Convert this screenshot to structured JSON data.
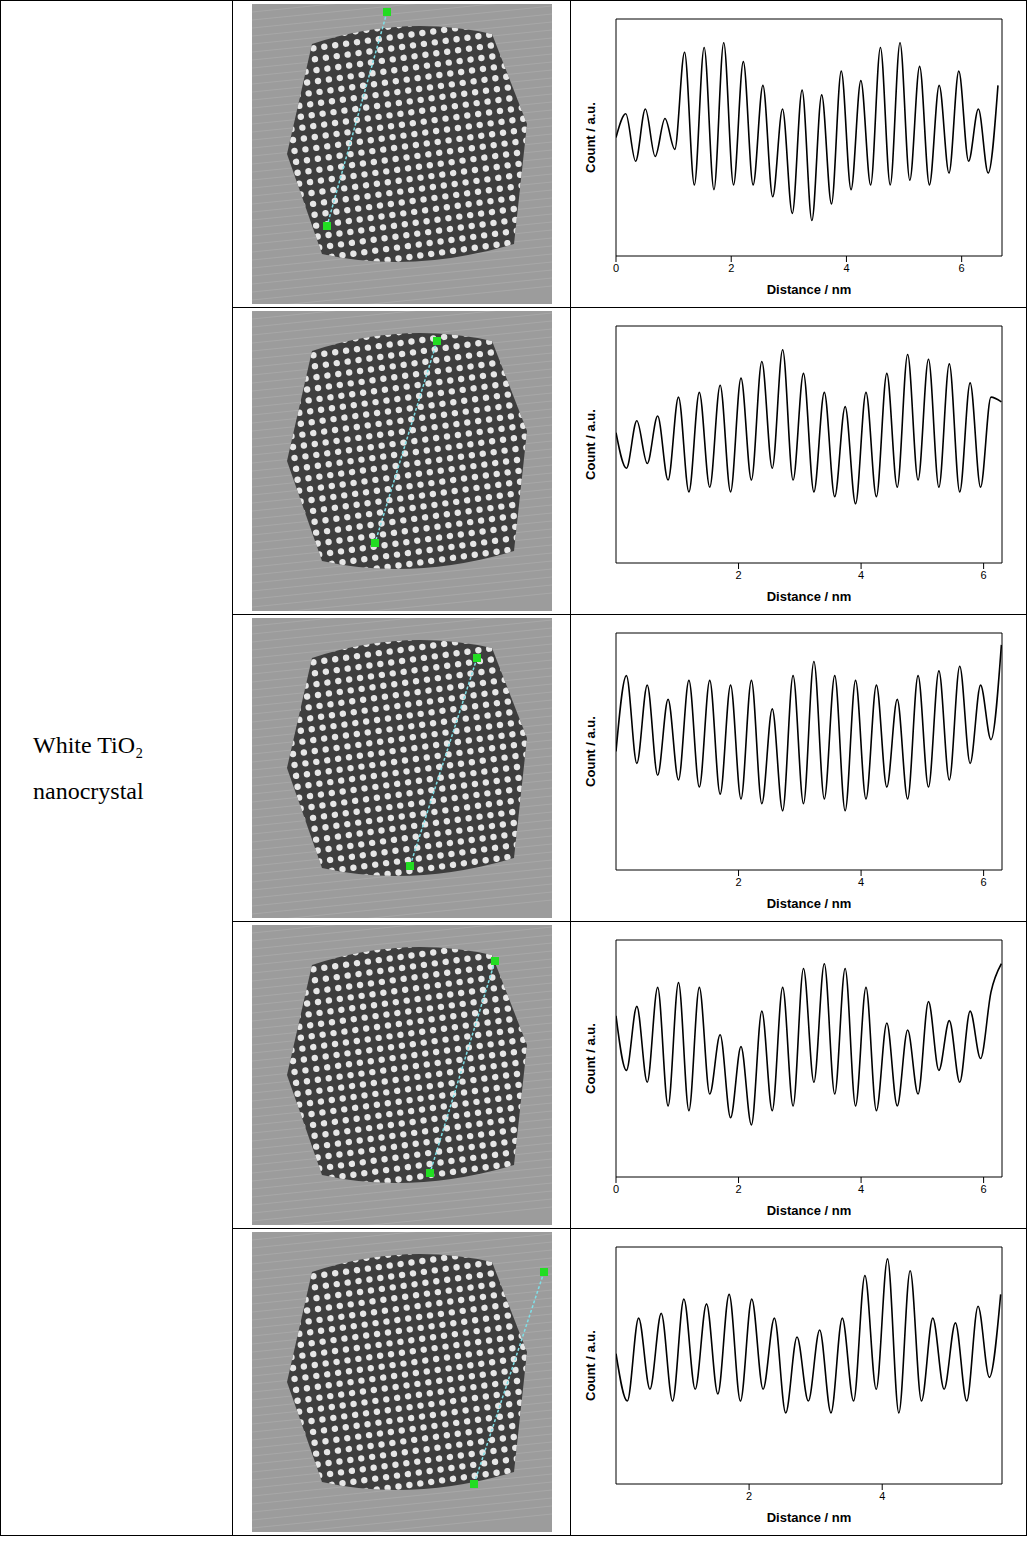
{
  "row_label": [
    "White TiO₂",
    "nanocrystal"
  ],
  "chart_data": [
    {
      "type": "line",
      "xlabel": "Distance / nm",
      "ylabel": "Count / a.u.",
      "color": "#000000",
      "tick_labels": "x",
      "xlim": [
        0,
        6.7
      ],
      "xticks": [
        0,
        2,
        4,
        6
      ],
      "ylim": [
        0,
        1
      ],
      "x": [
        0,
        0.17,
        0.34,
        0.51,
        0.68,
        0.85,
        1.02,
        1.19,
        1.36,
        1.53,
        1.7,
        1.87,
        2.04,
        2.21,
        2.38,
        2.55,
        2.72,
        2.89,
        3.06,
        3.23,
        3.4,
        3.57,
        3.74,
        3.91,
        4.08,
        4.25,
        4.42,
        4.59,
        4.76,
        4.93,
        5.1,
        5.27,
        5.44,
        5.61,
        5.78,
        5.95,
        6.12,
        6.29,
        6.46,
        6.63
      ],
      "values": [
        0.5,
        0.6,
        0.4,
        0.62,
        0.42,
        0.58,
        0.45,
        0.86,
        0.3,
        0.88,
        0.28,
        0.9,
        0.3,
        0.82,
        0.3,
        0.72,
        0.25,
        0.62,
        0.18,
        0.7,
        0.15,
        0.68,
        0.22,
        0.78,
        0.28,
        0.74,
        0.3,
        0.88,
        0.3,
        0.9,
        0.32,
        0.8,
        0.3,
        0.72,
        0.35,
        0.78,
        0.4,
        0.62,
        0.35,
        0.72
      ]
    },
    {
      "type": "line",
      "xlabel": "Distance / nm",
      "ylabel": "Count / a.u.",
      "color": "#000000",
      "tick_labels": "x",
      "xlim": [
        0,
        6.3
      ],
      "xticks": [
        2,
        4,
        6
      ],
      "ylim": [
        0,
        1
      ],
      "x": [
        0,
        0.17,
        0.34,
        0.51,
        0.68,
        0.85,
        1.02,
        1.19,
        1.36,
        1.53,
        1.7,
        1.87,
        2.04,
        2.21,
        2.38,
        2.55,
        2.72,
        2.89,
        3.06,
        3.23,
        3.4,
        3.57,
        3.74,
        3.91,
        4.08,
        4.25,
        4.42,
        4.59,
        4.76,
        4.93,
        5.1,
        5.27,
        5.44,
        5.61,
        5.78,
        5.95,
        6.12,
        6.29
      ],
      "values": [
        0.55,
        0.4,
        0.6,
        0.42,
        0.62,
        0.35,
        0.7,
        0.3,
        0.72,
        0.32,
        0.75,
        0.3,
        0.78,
        0.35,
        0.85,
        0.4,
        0.9,
        0.35,
        0.8,
        0.3,
        0.72,
        0.28,
        0.66,
        0.25,
        0.72,
        0.28,
        0.8,
        0.32,
        0.88,
        0.35,
        0.86,
        0.32,
        0.84,
        0.3,
        0.76,
        0.32,
        0.7,
        0.68
      ]
    },
    {
      "type": "line",
      "xlabel": "Distance / nm",
      "ylabel": "Count / a.u.",
      "color": "#000000",
      "tick_labels": "x",
      "xlim": [
        0,
        6.3
      ],
      "xticks": [
        2,
        4,
        6
      ],
      "ylim": [
        0,
        1
      ],
      "x": [
        0,
        0.17,
        0.34,
        0.51,
        0.68,
        0.85,
        1.02,
        1.19,
        1.36,
        1.53,
        1.7,
        1.87,
        2.04,
        2.21,
        2.38,
        2.55,
        2.72,
        2.89,
        3.06,
        3.23,
        3.4,
        3.57,
        3.74,
        3.91,
        4.08,
        4.25,
        4.42,
        4.59,
        4.76,
        4.93,
        5.1,
        5.27,
        5.44,
        5.61,
        5.78,
        5.95,
        6.12,
        6.29
      ],
      "values": [
        0.5,
        0.82,
        0.45,
        0.78,
        0.4,
        0.72,
        0.38,
        0.8,
        0.35,
        0.8,
        0.32,
        0.78,
        0.3,
        0.8,
        0.28,
        0.68,
        0.25,
        0.82,
        0.28,
        0.88,
        0.3,
        0.82,
        0.25,
        0.8,
        0.3,
        0.78,
        0.35,
        0.72,
        0.3,
        0.82,
        0.35,
        0.84,
        0.38,
        0.86,
        0.45,
        0.78,
        0.55,
        0.95
      ]
    },
    {
      "type": "line",
      "xlabel": "Distance / nm",
      "ylabel": "Count / a.u.",
      "color": "#000000",
      "tick_labels": "x",
      "xlim": [
        0,
        6.3
      ],
      "xticks": [
        0,
        2,
        4,
        6
      ],
      "ylim": [
        0,
        1
      ],
      "x": [
        0,
        0.17,
        0.34,
        0.51,
        0.68,
        0.85,
        1.02,
        1.19,
        1.36,
        1.53,
        1.7,
        1.87,
        2.04,
        2.21,
        2.38,
        2.55,
        2.72,
        2.89,
        3.06,
        3.23,
        3.4,
        3.57,
        3.74,
        3.91,
        4.08,
        4.25,
        4.42,
        4.59,
        4.76,
        4.93,
        5.1,
        5.27,
        5.44,
        5.61,
        5.78,
        5.95,
        6.12,
        6.29
      ],
      "values": [
        0.68,
        0.45,
        0.72,
        0.4,
        0.8,
        0.3,
        0.82,
        0.28,
        0.8,
        0.35,
        0.6,
        0.25,
        0.55,
        0.22,
        0.7,
        0.28,
        0.8,
        0.3,
        0.88,
        0.4,
        0.9,
        0.35,
        0.88,
        0.3,
        0.8,
        0.28,
        0.65,
        0.3,
        0.62,
        0.35,
        0.74,
        0.45,
        0.66,
        0.4,
        0.7,
        0.5,
        0.78,
        0.9
      ]
    },
    {
      "type": "line",
      "xlabel": "Distance / nm",
      "ylabel": "Count / a.u.",
      "color": "#000000",
      "tick_labels": "x",
      "xlim": [
        0,
        5.8
      ],
      "xticks": [
        2,
        4
      ],
      "ylim": [
        0,
        1
      ],
      "x": [
        0,
        0.17,
        0.34,
        0.51,
        0.68,
        0.85,
        1.02,
        1.19,
        1.36,
        1.53,
        1.7,
        1.87,
        2.04,
        2.21,
        2.38,
        2.55,
        2.72,
        2.89,
        3.06,
        3.23,
        3.4,
        3.57,
        3.74,
        3.91,
        4.08,
        4.25,
        4.42,
        4.59,
        4.76,
        4.93,
        5.1,
        5.27,
        5.44,
        5.61,
        5.78
      ],
      "values": [
        0.55,
        0.35,
        0.7,
        0.4,
        0.72,
        0.35,
        0.78,
        0.4,
        0.76,
        0.38,
        0.8,
        0.35,
        0.78,
        0.4,
        0.7,
        0.3,
        0.62,
        0.35,
        0.65,
        0.3,
        0.7,
        0.35,
        0.88,
        0.4,
        0.95,
        0.3,
        0.9,
        0.35,
        0.7,
        0.4,
        0.68,
        0.35,
        0.75,
        0.45,
        0.8
      ]
    }
  ]
}
